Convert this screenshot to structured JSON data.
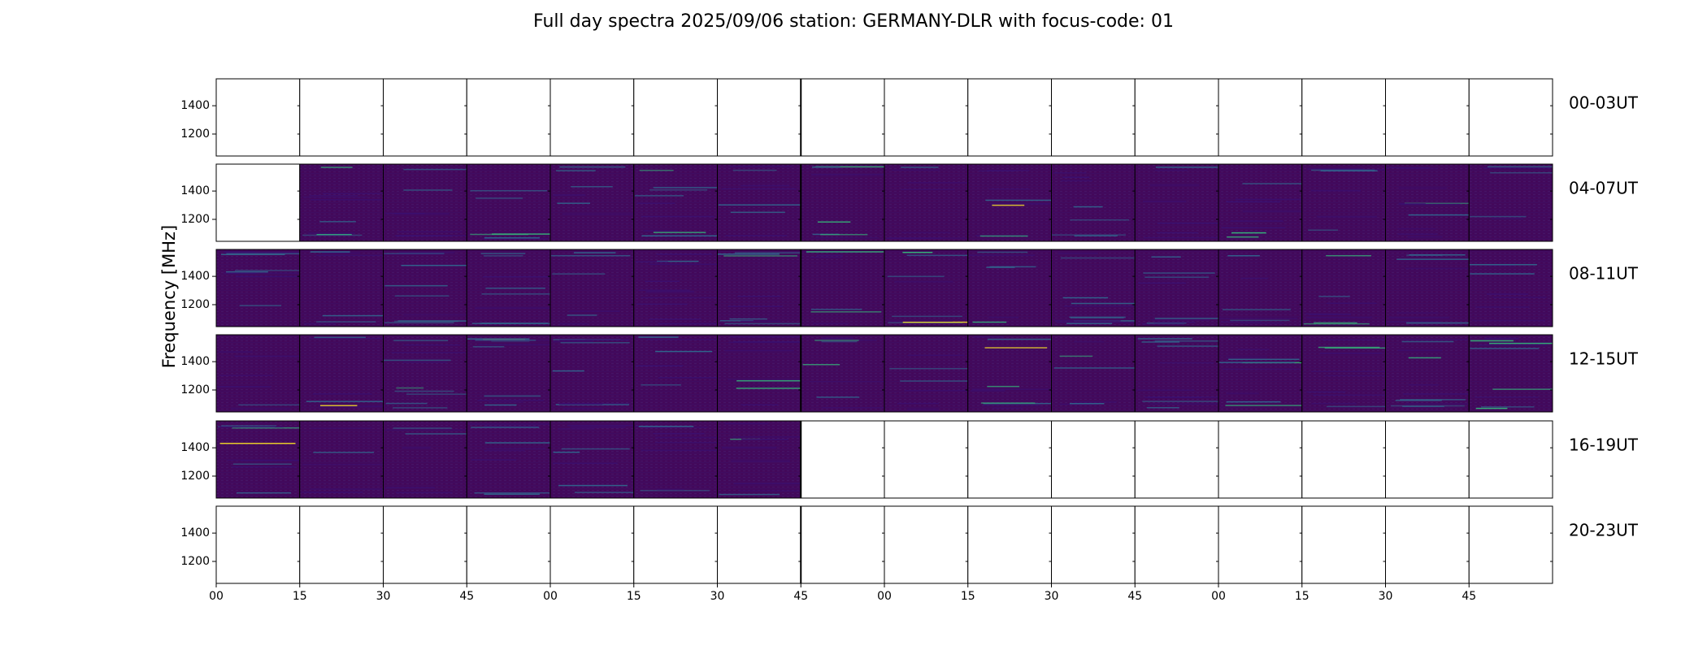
{
  "chart_data": {
    "type": "heatmap",
    "title": "Full day spectra 2025/09/06 station: GERMANY-DLR with focus-code: 01",
    "ylabel": "Frequency [MHz]",
    "xlabel": "",
    "y_ticks": [
      1200,
      1400
    ],
    "ylim": [
      1045,
      1590
    ],
    "x_tick_labels": [
      "00",
      "15",
      "30",
      "45",
      "00",
      "15",
      "30",
      "45",
      "00",
      "15",
      "30",
      "45",
      "00",
      "15",
      "30",
      "45"
    ],
    "panels_per_row": 16,
    "colormap": "viridis",
    "rows": [
      {
        "label": "00-03UT",
        "filled": [
          0,
          0,
          0,
          0,
          0,
          0,
          0,
          0,
          0,
          0,
          0,
          0,
          0,
          0,
          0,
          0
        ]
      },
      {
        "label": "04-07UT",
        "filled": [
          0,
          1,
          1,
          1,
          1,
          1,
          1,
          1,
          1,
          1,
          1,
          1,
          1,
          1,
          1,
          1
        ]
      },
      {
        "label": "08-11UT",
        "filled": [
          1,
          1,
          1,
          1,
          1,
          1,
          1,
          1,
          1,
          1,
          1,
          1,
          1,
          1,
          1,
          1
        ]
      },
      {
        "label": "12-15UT",
        "filled": [
          1,
          1,
          1,
          1,
          1,
          1,
          1,
          1,
          1,
          1,
          1,
          1,
          1,
          1,
          1,
          1
        ]
      },
      {
        "label": "16-19UT",
        "filled": [
          1,
          1,
          1,
          1,
          1,
          1,
          1,
          0,
          0,
          0,
          0,
          0,
          0,
          0,
          0,
          0
        ]
      },
      {
        "label": "20-23UT",
        "filled": [
          0,
          0,
          0,
          0,
          0,
          0,
          0,
          0,
          0,
          0,
          0,
          0,
          0,
          0,
          0,
          0
        ]
      }
    ]
  },
  "colors": {
    "background": "#440154",
    "low": "#3b0f6f",
    "mid": "#31688e",
    "high": "#35b779",
    "peak": "#fde725",
    "frame": "#000000"
  }
}
